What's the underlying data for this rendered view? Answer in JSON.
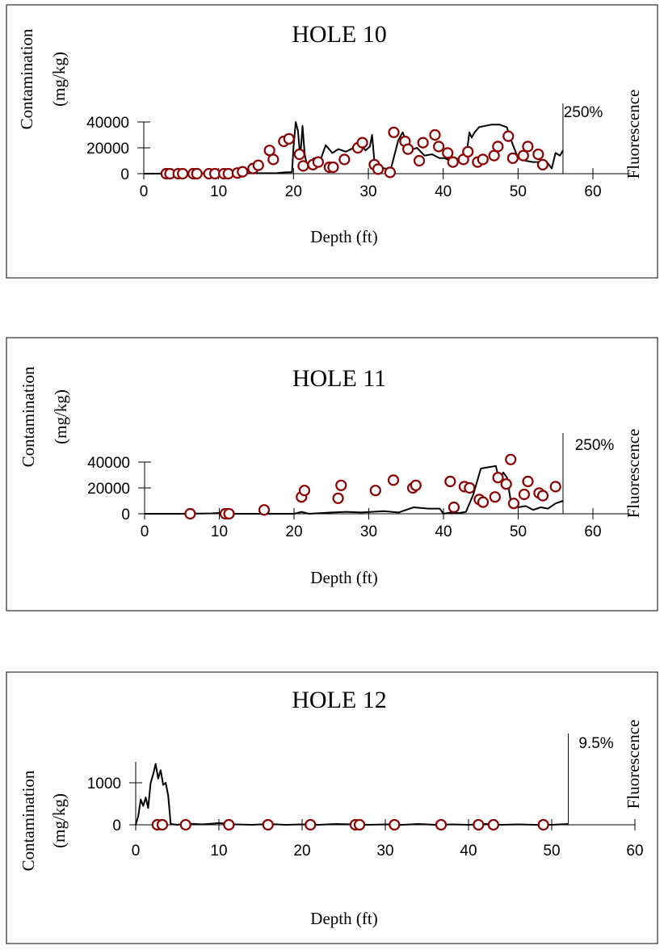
{
  "chart_data": [
    {
      "type": "scatter",
      "title": "HOLE 10",
      "xlabel": "Depth (ft)",
      "ylabel": "Contamination (mg/kg)",
      "y2label": "Fluorescence",
      "marker_label": "250%",
      "marker_x": 56,
      "xlim": [
        0,
        65
      ],
      "ylim": [
        0,
        40000
      ],
      "xticks": [
        0,
        10,
        20,
        30,
        40,
        50,
        60
      ],
      "yticks": [
        0,
        20000,
        40000
      ],
      "colors": {
        "points": "#8b0000",
        "line": "#000000"
      },
      "series": [
        {
          "kind": "points",
          "x": [
            3,
            3.5,
            4.6,
            5.2,
            6.6,
            7.1,
            8.7,
            9.5,
            10.7,
            11.3,
            12.5,
            13.2,
            14.6,
            15.3,
            16.8,
            17.3,
            18.7,
            19.4,
            20.8,
            21.3,
            22.6,
            23.3,
            24.8,
            25.3,
            26.8,
            28.6,
            29.2,
            30.8,
            31.3,
            32.9,
            33.4,
            34.9,
            35.3,
            36.8,
            37.3,
            38.9,
            39.4,
            40.6,
            41.3,
            42.7,
            43.3,
            44.6,
            45.3,
            46.8,
            47.3,
            48.7,
            49.3,
            50.7,
            51.3,
            52.7,
            53.3
          ],
          "y": [
            0,
            0,
            0,
            0,
            0,
            0,
            0,
            0,
            0,
            0,
            500,
            1500,
            4000,
            6500,
            18000,
            11000,
            25000,
            27000,
            15000,
            6000,
            7000,
            9000,
            5000,
            5000,
            11000,
            20000,
            24000,
            7000,
            3500,
            1000,
            32000,
            25000,
            19000,
            10000,
            24000,
            30000,
            21000,
            16000,
            9000,
            11000,
            17000,
            9000,
            11000,
            14000,
            21000,
            29000,
            12000,
            14000,
            21000,
            15000,
            7000
          ]
        },
        {
          "kind": "line",
          "x": [
            0,
            17.8,
            18.8,
            19.8,
            20,
            20.3,
            20.6,
            20.9,
            21.2,
            21.5,
            21.8,
            22.2,
            22.7,
            23.5,
            24.3,
            25.2,
            26,
            27,
            28,
            29,
            29.6,
            30.2,
            30.5,
            30.8,
            31.2,
            31.6,
            32.2,
            33,
            34,
            34.6,
            35.5,
            36.5,
            37.5,
            38.5,
            39.5,
            40.2,
            41,
            41.6,
            42.2,
            43,
            43.5,
            43.8,
            44.2,
            44.8,
            45.6,
            46.5,
            47.5,
            48,
            48.5,
            49.2,
            50,
            51,
            52,
            53,
            54,
            54.5,
            55,
            55.6,
            56
          ],
          "y": [
            0,
            500,
            1000,
            1200,
            20000,
            40000,
            33000,
            12000,
            37000,
            15000,
            7000,
            7500,
            12000,
            9000,
            22000,
            16000,
            19000,
            17000,
            20000,
            24000,
            18000,
            21000,
            30000,
            10000,
            6000,
            5000,
            4000,
            3500,
            26000,
            32000,
            18000,
            20000,
            14000,
            15000,
            12000,
            12000,
            10000,
            12000,
            11000,
            10000,
            32000,
            28000,
            32000,
            36000,
            37000,
            38000,
            38000,
            37000,
            36000,
            24000,
            12000,
            10000,
            9000,
            9000,
            8000,
            4000,
            16000,
            14000,
            18000
          ]
        }
      ]
    },
    {
      "type": "scatter",
      "title": "HOLE 11",
      "xlabel": "Depth (ft)",
      "ylabel": "Contamination (mg/kg)",
      "y2label": "Fluorescence",
      "marker_label": "250%",
      "marker_x": 56,
      "xlim": [
        0,
        65
      ],
      "ylim": [
        0,
        40000
      ],
      "xticks": [
        0,
        10,
        20,
        30,
        40,
        50,
        60
      ],
      "yticks": [
        0,
        20000,
        40000
      ],
      "colors": {
        "points": "#8b0000",
        "line": "#000000"
      },
      "series": [
        {
          "kind": "points",
          "x": [
            6.1,
            10.8,
            11.3,
            16,
            21,
            21.4,
            25.9,
            26.3,
            30.9,
            33.3,
            35.9,
            36.3,
            40.9,
            41.4,
            42.8,
            43.5,
            44.8,
            45.3,
            46.9,
            47.3,
            48.4,
            49,
            49.4,
            50.8,
            51.3,
            52.8,
            53.3,
            55
          ],
          "y": [
            0,
            0,
            0,
            3000,
            13000,
            18000,
            12000,
            22000,
            18000,
            26000,
            20000,
            22000,
            25000,
            5000,
            21000,
            20000,
            11000,
            9000,
            13000,
            28000,
            23000,
            42000,
            8000,
            15000,
            25000,
            16000,
            14000,
            21000
          ]
        },
        {
          "kind": "line",
          "x": [
            0,
            5,
            9,
            10,
            11,
            20,
            21,
            22,
            25,
            27,
            29,
            32,
            34,
            35,
            36,
            38,
            39.5,
            40,
            41,
            42,
            43,
            44,
            44.5,
            45,
            46,
            47,
            47.5,
            48,
            48.5,
            49,
            49.5,
            50,
            51,
            52,
            53,
            54,
            55,
            56
          ],
          "y": [
            0,
            0,
            300,
            600,
            0,
            0,
            1500,
            0,
            1000,
            1500,
            1000,
            2000,
            1000,
            3000,
            5000,
            4000,
            4000,
            0,
            1000,
            500,
            1500,
            15000,
            25000,
            35000,
            36000,
            37000,
            25000,
            32000,
            28000,
            10000,
            12000,
            5000,
            6000,
            3000,
            5000,
            4000,
            8000,
            10000
          ]
        }
      ]
    },
    {
      "type": "scatter",
      "title": "HOLE 12",
      "xlabel": "Depth (ft)",
      "ylabel": "Contamination (mg/kg)",
      "y2label": "Fluorescence",
      "marker_label": "9.5%",
      "marker_x": 52,
      "xlim": [
        0,
        60
      ],
      "ylim": [
        0,
        1500
      ],
      "xticks": [
        0,
        10,
        20,
        30,
        40,
        50,
        60
      ],
      "yticks": [
        0,
        1000
      ],
      "colors": {
        "points": "#8b0000",
        "line": "#000000"
      },
      "series": [
        {
          "kind": "points",
          "x": [
            2.6,
            3.2,
            6,
            11.2,
            15.9,
            21,
            26.4,
            26.9,
            31.1,
            36.7,
            41.2,
            43,
            49
          ],
          "y": [
            0,
            0,
            0,
            0,
            0,
            0,
            0,
            0,
            0,
            0,
            0,
            0,
            0
          ]
        },
        {
          "kind": "line",
          "x": [
            0,
            0.3,
            0.6,
            0.9,
            1.2,
            1.5,
            1.8,
            2.1,
            2.4,
            2.7,
            3,
            3.3,
            3.6,
            3.9,
            4.2,
            5,
            6,
            8,
            10,
            12,
            14,
            16,
            18,
            20,
            22,
            24,
            26,
            28,
            30,
            32,
            34,
            36,
            38,
            40,
            42,
            44,
            46,
            48,
            50,
            52
          ],
          "y": [
            0,
            200,
            600,
            450,
            650,
            400,
            1000,
            1200,
            1450,
            1100,
            1300,
            950,
            1000,
            700,
            20,
            0,
            30,
            10,
            40,
            10,
            0,
            20,
            0,
            10,
            0,
            20,
            10,
            0,
            10,
            0,
            20,
            0,
            10,
            0,
            20,
            0,
            10,
            0,
            0,
            20
          ]
        }
      ]
    }
  ]
}
